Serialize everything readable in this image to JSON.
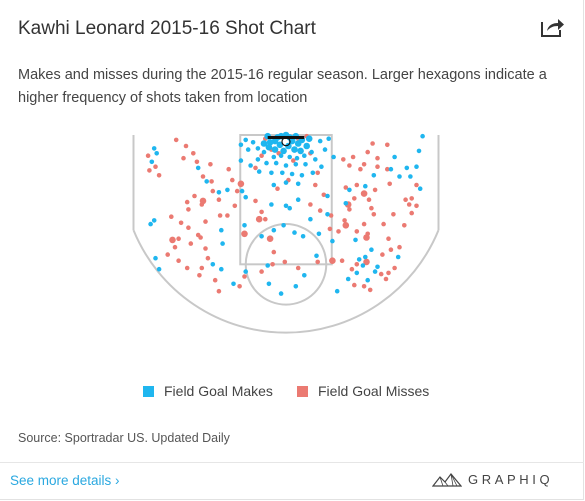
{
  "header": {
    "title": "Kawhi Leonard 2015-16 Shot Chart",
    "subtitle": "Makes and misses during the 2015-16 regular season. Larger hexagons indicate a higher frequency of shots taken from location",
    "share_icon": "share-icon"
  },
  "legend": {
    "makes_label": "Field Goal Makes",
    "misses_label": "Field Goal Misses"
  },
  "colors": {
    "make": "#1fb6ef",
    "miss": "#eb7a72",
    "court_line": "#c8c8c8",
    "rim": "#111111",
    "link": "#2aa8e0"
  },
  "footer": {
    "source": "Source: Sportradar US. Updated Daily",
    "more_link": "See more details ›",
    "brand": "GRAPHIQ",
    "brand_icon": "graphiq-mountain-icon"
  },
  "chart_data": {
    "type": "scatter",
    "description_units": "feet; x from -25 (left sideline) to 25 (right sideline), y from 0 (baseline) to 26 (just beyond 3-point arc top)",
    "xlim": [
      -25,
      25
    ],
    "ylim": [
      0,
      26
    ],
    "series": [
      {
        "name": "Field Goal Makes",
        "points": [
          [
            -21.6,
            2.2,
            1
          ],
          [
            -21.2,
            3.0,
            1
          ],
          [
            -22.0,
            4.4,
            1
          ],
          [
            -14.4,
            5.4,
            1
          ],
          [
            -13.0,
            7.6,
            1
          ],
          [
            -11.0,
            9.4,
            1
          ],
          [
            -9.6,
            9.0,
            1
          ],
          [
            -7.2,
            9.2,
            1
          ],
          [
            -6.6,
            10.2,
            1
          ],
          [
            -2.4,
            11.4,
            1
          ],
          [
            0.0,
            11.6,
            1
          ],
          [
            0.6,
            12.0,
            1
          ],
          [
            2.0,
            10.6,
            1
          ],
          [
            4.0,
            13.8,
            1
          ],
          [
            6.8,
            10.0,
            1
          ],
          [
            9.8,
            11.2,
            1
          ],
          [
            10.4,
            9.0,
            1
          ],
          [
            13.0,
            8.4,
            1
          ],
          [
            14.4,
            6.6,
            1
          ],
          [
            17.8,
            3.6,
            1
          ],
          [
            17.2,
            5.6,
            1
          ],
          [
            18.6,
            6.8,
            1
          ],
          [
            19.8,
            5.4,
            1
          ],
          [
            20.4,
            6.8,
            1
          ],
          [
            21.4,
            5.2,
            1
          ],
          [
            22.0,
            8.8,
            1
          ],
          [
            22.4,
            0.2,
            1
          ],
          [
            21.8,
            2.6,
            1
          ],
          [
            -21.6,
            14.0,
            1
          ],
          [
            -22.2,
            14.6,
            1
          ],
          [
            -21.4,
            20.2,
            1
          ],
          [
            -20.8,
            22.0,
            1
          ],
          [
            -10.6,
            15.6,
            1
          ],
          [
            -10.4,
            17.8,
            1
          ],
          [
            -6.8,
            14.8,
            1
          ],
          [
            -4.0,
            16.6,
            1
          ],
          [
            -2.0,
            15.6,
            1
          ],
          [
            -0.4,
            14.8,
            1
          ],
          [
            1.4,
            16.0,
            1
          ],
          [
            2.8,
            16.6,
            1
          ],
          [
            5.4,
            16.2,
            1
          ],
          [
            6.8,
            13.0,
            1
          ],
          [
            11.4,
            17.2,
            1
          ],
          [
            12.0,
            20.4,
            1
          ],
          [
            13.0,
            20.0,
            1
          ],
          [
            18.4,
            20.0,
            1
          ],
          [
            -8.6,
            24.4,
            1
          ],
          [
            -10.6,
            22.0,
            1
          ],
          [
            -12.0,
            21.2,
            1
          ],
          [
            -6.6,
            22.4,
            1
          ],
          [
            -2.8,
            24.4,
            1
          ],
          [
            -0.8,
            26.0,
            1
          ],
          [
            1.6,
            24.8,
            1
          ],
          [
            3.0,
            23.0,
            1
          ],
          [
            8.4,
            25.6,
            1
          ],
          [
            10.2,
            23.6,
            1
          ],
          [
            11.6,
            22.6,
            1
          ],
          [
            12.6,
            21.4,
            1
          ],
          [
            13.4,
            23.8,
            1
          ],
          [
            14.6,
            22.4,
            1
          ],
          [
            14.0,
            18.8,
            1
          ],
          [
            15.0,
            21.6,
            1
          ],
          [
            -3.0,
            21.4,
            1
          ],
          [
            5.0,
            19.8,
            1
          ],
          [
            7.6,
            17.4,
            1
          ],
          [
            -1.4,
            0.4,
            2
          ],
          [
            -1.8,
            1.0,
            2
          ],
          [
            -0.8,
            0.2,
            2
          ],
          [
            0.0,
            0.0,
            2
          ],
          [
            0.6,
            0.4,
            2
          ],
          [
            1.0,
            1.0,
            2
          ],
          [
            1.6,
            0.2,
            2
          ],
          [
            2.0,
            1.4,
            2
          ],
          [
            -2.6,
            1.2,
            2
          ],
          [
            -3.0,
            0.2,
            2
          ],
          [
            2.6,
            0.8,
            2
          ],
          [
            -1.0,
            1.6,
            2
          ],
          [
            0.4,
            1.8,
            2
          ],
          [
            1.4,
            2.4,
            2
          ],
          [
            -0.4,
            2.6,
            2
          ],
          [
            -1.8,
            2.4,
            2
          ],
          [
            2.4,
            2.6,
            2
          ],
          [
            -2.8,
            2.0,
            2
          ],
          [
            3.4,
            1.8,
            2
          ],
          [
            -3.6,
            1.4,
            2
          ],
          [
            3.8,
            0.6,
            2
          ],
          [
            -0.8,
            3.4,
            1
          ],
          [
            0.6,
            3.6,
            1
          ],
          [
            1.8,
            3.8,
            1
          ],
          [
            -2.0,
            3.6,
            1
          ],
          [
            3.0,
            3.4,
            1
          ],
          [
            -3.6,
            2.8,
            1
          ],
          [
            4.2,
            2.8,
            1
          ],
          [
            -4.6,
            2.2,
            1
          ],
          [
            -5.4,
            1.2,
            1
          ],
          [
            5.6,
            1.0,
            1
          ],
          [
            -6.2,
            2.4,
            1
          ],
          [
            -6.6,
            0.8,
            1
          ],
          [
            -7.4,
            1.6,
            1
          ],
          [
            6.4,
            2.4,
            1
          ],
          [
            7.0,
            0.6,
            1
          ],
          [
            -1.6,
            4.6,
            1
          ],
          [
            0.0,
            5.0,
            1
          ],
          [
            1.6,
            4.8,
            1
          ],
          [
            -3.2,
            4.6,
            1
          ],
          [
            3.2,
            4.8,
            1
          ],
          [
            -4.6,
            4.0,
            1
          ],
          [
            4.8,
            4.0,
            1
          ],
          [
            -0.6,
            6.2,
            1
          ],
          [
            1.0,
            6.4,
            1
          ],
          [
            -2.4,
            6.2,
            1
          ],
          [
            2.6,
            6.6,
            1
          ],
          [
            -4.4,
            6.0,
            1
          ],
          [
            4.4,
            6.2,
            1
          ],
          [
            -5.8,
            5.0,
            1
          ],
          [
            5.8,
            5.2,
            1
          ],
          [
            -7.4,
            4.2,
            1
          ],
          [
            7.8,
            3.6,
            1
          ],
          [
            0.0,
            7.8,
            1
          ],
          [
            -2.0,
            8.2,
            1
          ],
          [
            2.0,
            8.0,
            1
          ]
        ]
      },
      {
        "name": "Field Goal Misses",
        "points": [
          [
            -22.6,
            3.4,
            1
          ],
          [
            -21.4,
            5.2,
            1
          ],
          [
            -22.4,
            5.8,
            1
          ],
          [
            -20.8,
            6.6,
            1
          ],
          [
            -18.0,
            0.8,
            1
          ],
          [
            -16.4,
            1.8,
            1
          ],
          [
            -16.8,
            3.8,
            1
          ],
          [
            -15.2,
            3.0,
            1
          ],
          [
            -14.6,
            4.4,
            1
          ],
          [
            -12.4,
            4.8,
            1
          ],
          [
            -13.6,
            6.8,
            1
          ],
          [
            -12.2,
            7.6,
            1
          ],
          [
            -12.0,
            9.2,
            1
          ],
          [
            -11.0,
            10.6,
            1
          ],
          [
            -9.4,
            5.6,
            1
          ],
          [
            -8.8,
            7.4,
            1
          ],
          [
            -8.0,
            9.2,
            1
          ],
          [
            -8.4,
            11.6,
            1
          ],
          [
            -9.6,
            13.2,
            1
          ],
          [
            -10.8,
            13.2,
            1
          ],
          [
            -15.0,
            10.0,
            1
          ],
          [
            -16.2,
            11.0,
            1
          ],
          [
            -16.0,
            12.2,
            1
          ],
          [
            -13.8,
            11.4,
            1
          ],
          [
            -13.2,
            14.2,
            1
          ],
          [
            -14.4,
            16.4,
            1
          ],
          [
            -15.6,
            17.8,
            1
          ],
          [
            -17.6,
            17.0,
            1
          ],
          [
            -18.2,
            18.4,
            1
          ],
          [
            -19.4,
            19.6,
            1
          ],
          [
            -17.6,
            20.6,
            1
          ],
          [
            -16.2,
            21.8,
            1
          ],
          [
            -13.8,
            21.8,
            1
          ],
          [
            -14.2,
            23.0,
            1
          ],
          [
            -11.6,
            23.8,
            1
          ],
          [
            -11.0,
            25.6,
            1
          ],
          [
            -7.6,
            24.8,
            1
          ],
          [
            -6.8,
            23.2,
            1
          ],
          [
            -4.0,
            22.4,
            1
          ],
          [
            -2.2,
            21.2,
            1
          ],
          [
            -2.0,
            19.2,
            1
          ],
          [
            -0.2,
            20.8,
            1
          ],
          [
            2.0,
            21.8,
            1
          ],
          [
            5.2,
            20.8,
            1
          ],
          [
            9.2,
            20.6,
            1
          ],
          [
            7.2,
            15.4,
            1
          ],
          [
            8.6,
            15.8,
            1
          ],
          [
            7.4,
            13.2,
            1
          ],
          [
            9.6,
            14.0,
            1
          ],
          [
            11.6,
            15.8,
            1
          ],
          [
            12.8,
            14.6,
            1
          ],
          [
            13.4,
            16.2,
            1
          ],
          [
            16.0,
            14.6,
            1
          ],
          [
            16.8,
            17.0,
            1
          ],
          [
            17.2,
            18.8,
            1
          ],
          [
            18.6,
            18.4,
            1
          ],
          [
            15.8,
            19.6,
            1
          ],
          [
            11.6,
            21.2,
            1
          ],
          [
            10.8,
            22.0,
            1
          ],
          [
            11.2,
            24.6,
            1
          ],
          [
            12.8,
            24.8,
            1
          ],
          [
            13.8,
            25.4,
            1
          ],
          [
            16.8,
            22.6,
            1
          ],
          [
            17.8,
            21.8,
            1
          ],
          [
            15.6,
            22.8,
            1
          ],
          [
            16.4,
            23.6,
            1
          ],
          [
            -5.0,
            10.8,
            1
          ],
          [
            -4.0,
            12.6,
            1
          ],
          [
            -3.4,
            13.8,
            1
          ],
          [
            4.0,
            11.4,
            1
          ],
          [
            5.6,
            12.4,
            1
          ],
          [
            6.2,
            9.8,
            1
          ],
          [
            4.8,
            8.2,
            1
          ],
          [
            5.2,
            6.2,
            1
          ],
          [
            9.4,
            4.0,
            1
          ],
          [
            10.4,
            5.0,
            1
          ],
          [
            11.0,
            3.6,
            1
          ],
          [
            12.2,
            5.6,
            1
          ],
          [
            13.4,
            2.8,
            1
          ],
          [
            12.8,
            4.8,
            1
          ],
          [
            14.2,
            1.4,
            1
          ],
          [
            15.0,
            3.8,
            1
          ],
          [
            16.6,
            1.6,
            1
          ],
          [
            15.0,
            5.2,
            1
          ],
          [
            16.6,
            5.6,
            1
          ],
          [
            11.6,
            8.2,
            1
          ],
          [
            11.2,
            10.4,
            1
          ],
          [
            9.8,
            8.6,
            1
          ],
          [
            17.0,
            8.0,
            1
          ],
          [
            14.6,
            9.0,
            1
          ],
          [
            13.6,
            10.6,
            1
          ],
          [
            10.4,
            12.2,
            1
          ],
          [
            14.0,
            12.0,
            1
          ],
          [
            14.4,
            13.0,
            1
          ],
          [
            21.4,
            8.2,
            1
          ],
          [
            20.6,
            10.4,
            1
          ],
          [
            20.2,
            11.4,
            1
          ],
          [
            19.6,
            10.6,
            1
          ],
          [
            21.4,
            11.6,
            1
          ],
          [
            20.6,
            12.8,
            1
          ],
          [
            17.6,
            13.0,
            1
          ],
          [
            19.4,
            14.8,
            1
          ],
          [
            -18.8,
            13.4,
            1
          ],
          [
            -17.2,
            14.4,
            1
          ],
          [
            -16.0,
            15.2,
            1
          ],
          [
            -14.0,
            16.8,
            1
          ],
          [
            -13.2,
            18.6,
            1
          ],
          [
            -12.8,
            20.2,
            1
          ],
          [
            -13.6,
            10.8,
            2
          ],
          [
            -7.4,
            8.0,
            2
          ],
          [
            -6.8,
            16.2,
            2
          ],
          [
            -4.4,
            13.8,
            2
          ],
          [
            -2.6,
            17.0,
            2
          ],
          [
            12.8,
            9.6,
            2
          ],
          [
            10.2,
            11.4,
            2
          ],
          [
            9.8,
            14.8,
            2
          ],
          [
            13.2,
            16.8,
            2
          ],
          [
            7.6,
            20.6,
            2
          ],
          [
            -18.6,
            17.2,
            2
          ],
          [
            13.2,
            20.8,
            2
          ],
          [
            -3.4,
            0.6,
            1
          ],
          [
            3.4,
            0.2,
            1
          ],
          [
            -2.4,
            2.4,
            1
          ],
          [
            2.0,
            0.6,
            1
          ],
          [
            -1.2,
            3.0,
            1
          ],
          [
            1.2,
            4.2,
            1
          ],
          [
            -4.0,
            3.4,
            1
          ],
          [
            4.0,
            3.0,
            1
          ],
          [
            -5.0,
            5.4,
            1
          ],
          [
            0.4,
            7.4,
            1
          ],
          [
            -1.4,
            8.8,
            1
          ]
        ]
      }
    ]
  }
}
